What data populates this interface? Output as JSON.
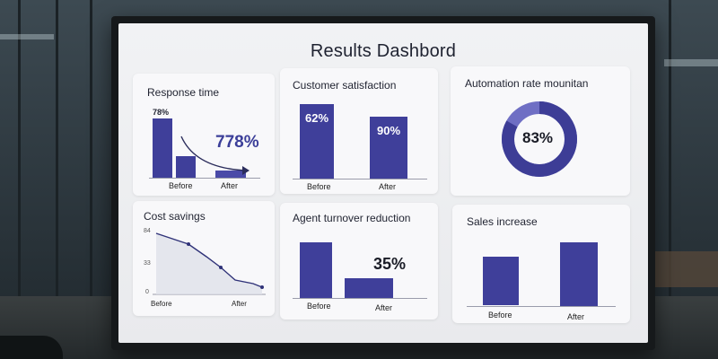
{
  "dashboard": {
    "title": "Results Dashbord"
  },
  "cards": {
    "response_time": {
      "title": "Response time",
      "small_value": "78%",
      "big_value": "778%",
      "before_label": "Before",
      "after_label": "After"
    },
    "customer_satisfaction": {
      "title": "Customer satisfaction",
      "before_value": "62%",
      "after_value": "90%",
      "before_label": "Before",
      "after_label": "After"
    },
    "automation_rate": {
      "title": "Automation rate mounitan",
      "value": "83%",
      "fraction": 0.83
    },
    "cost_savings": {
      "title": "Cost savings",
      "ticks": [
        "84",
        "33",
        "0"
      ],
      "before_label": "Before",
      "after_label": "After"
    },
    "agent_turnover": {
      "title": "Agent turnover reduction",
      "value": "35%",
      "before_label": "Before",
      "after_label": "After"
    },
    "sales_increase": {
      "title": "Sales increase",
      "before_label": "Before",
      "after_label": "After"
    }
  },
  "colors": {
    "bar": "#3f3f9a",
    "donut": "#3d3d96",
    "donut_track": "#6f6fc4"
  }
}
